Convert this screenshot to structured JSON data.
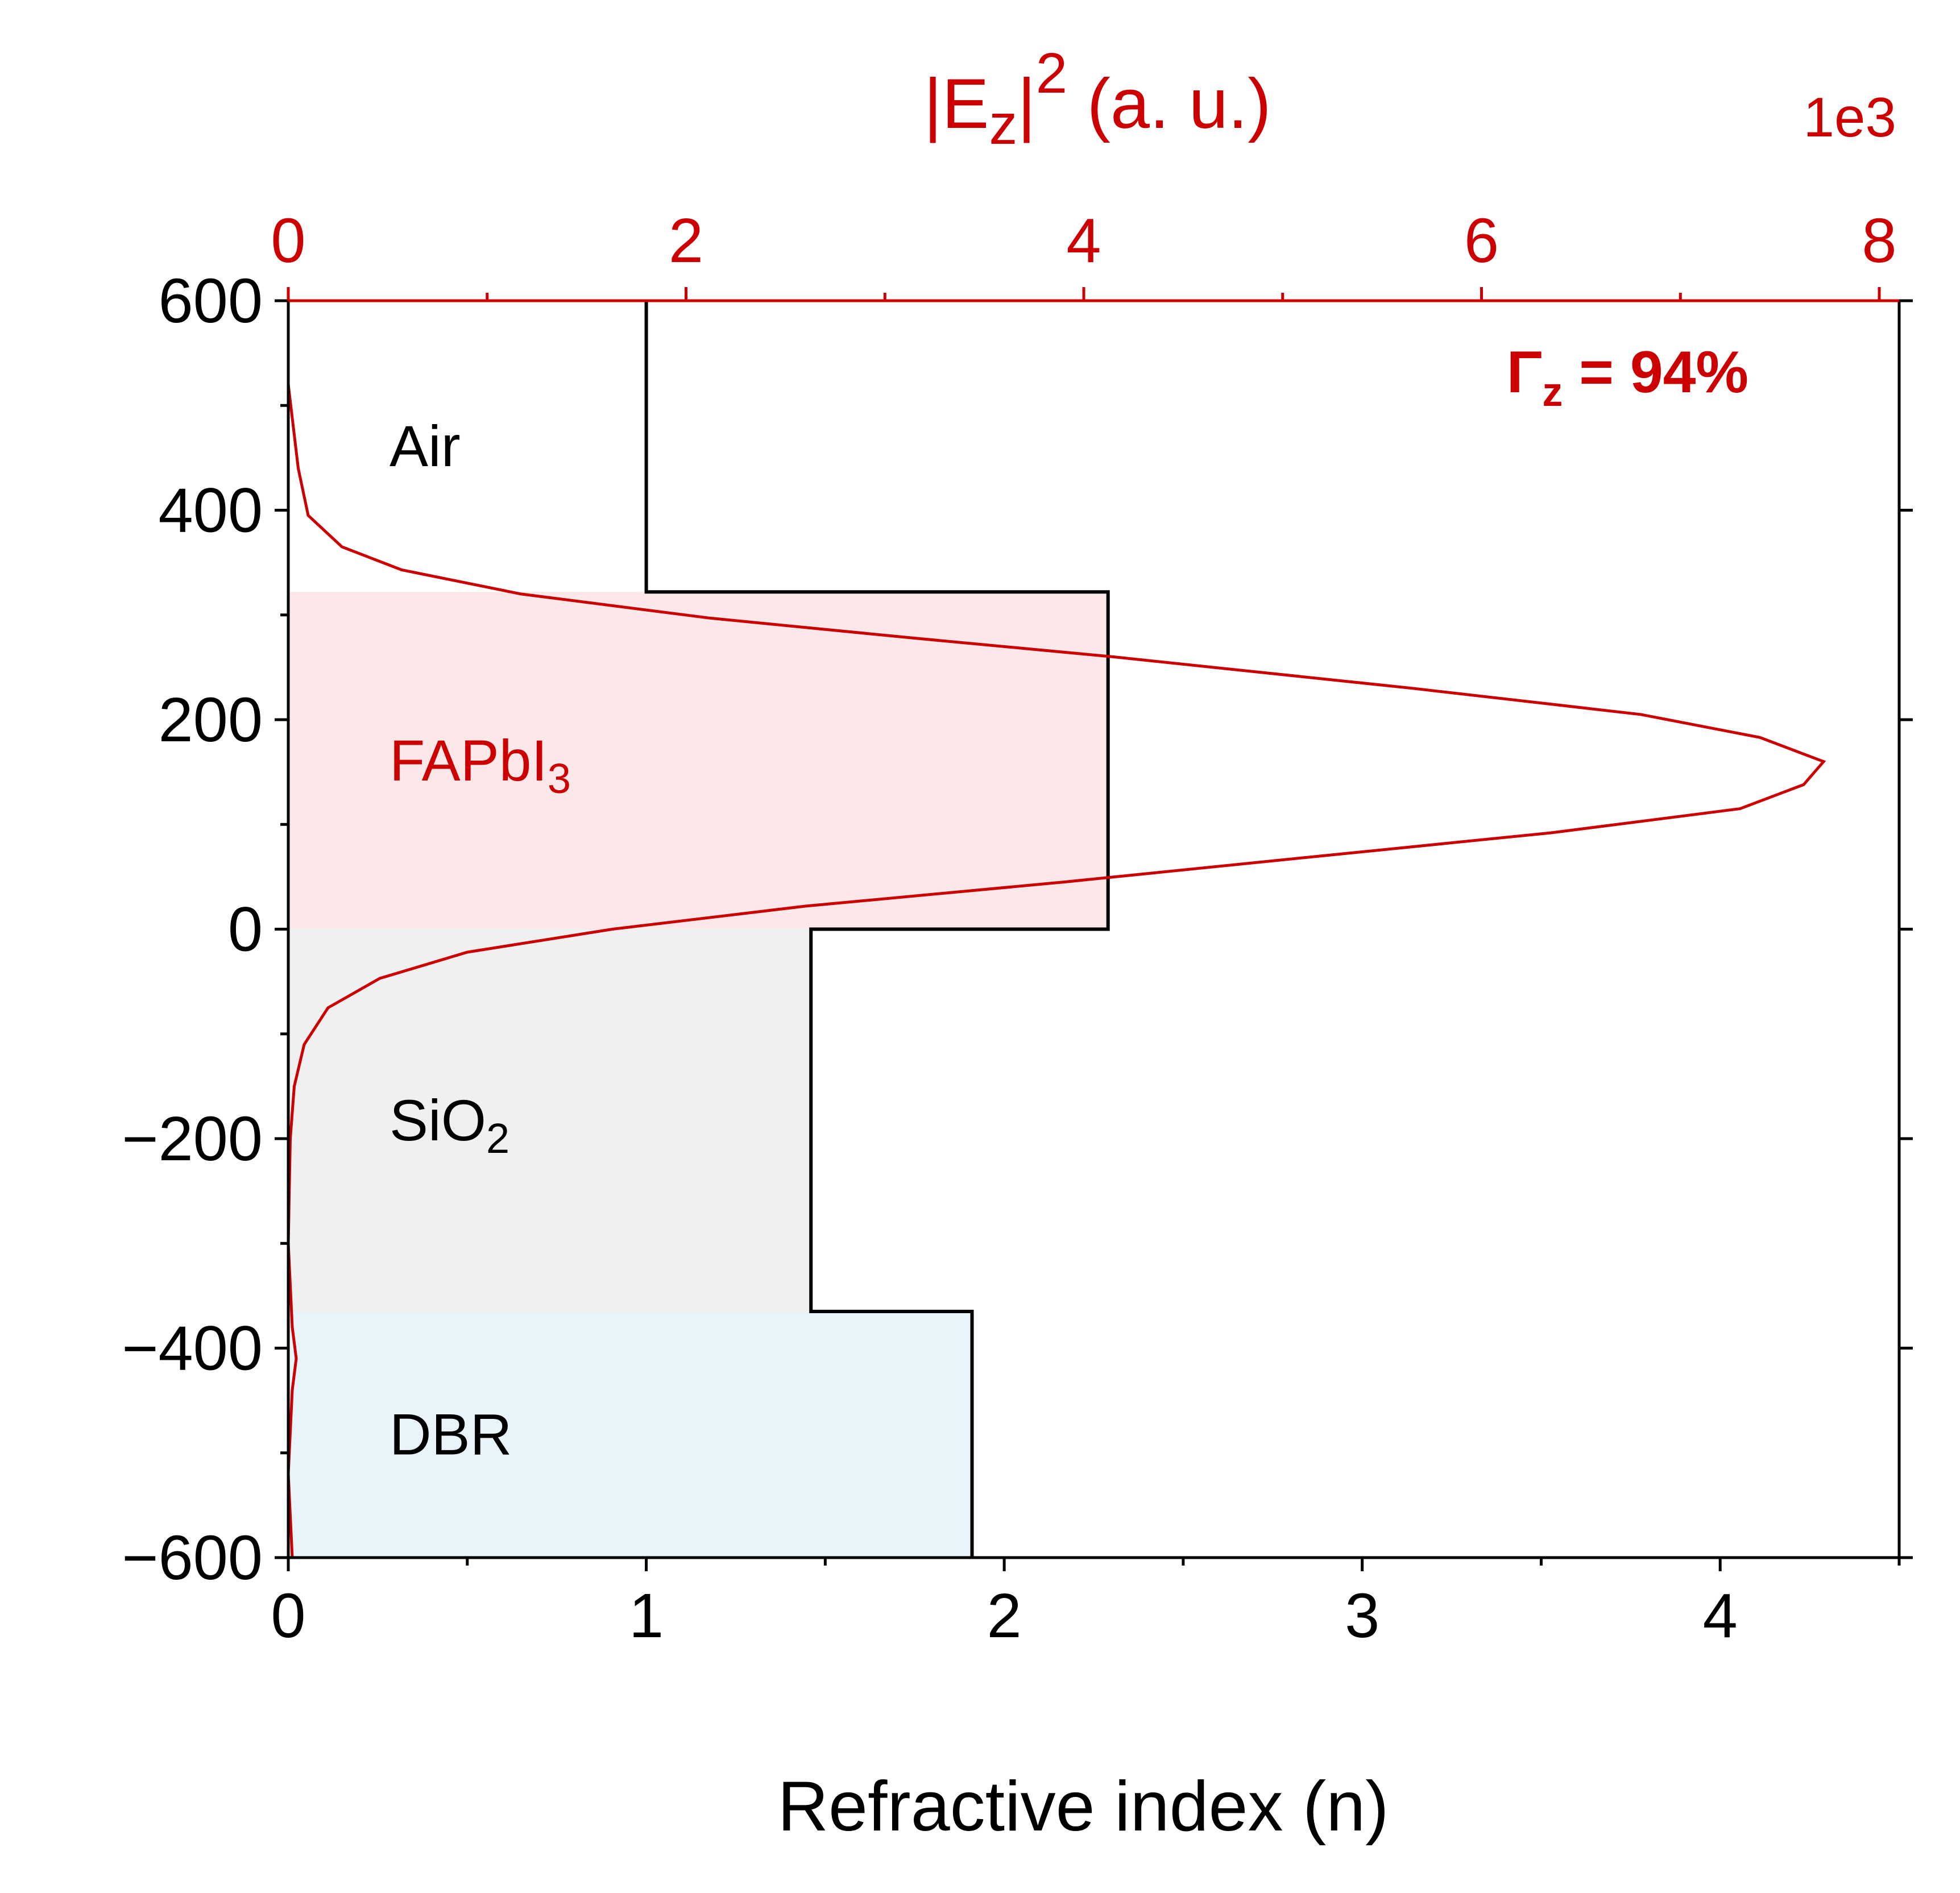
{
  "chart_data": {
    "type": "line",
    "xlabel": "Refractive index (n)",
    "x2label": "|E",
    "x2label_sub": "z",
    "x2label_sup": "2",
    "x2label_tail": " (a. u.)",
    "x2_multiplier": "1e3",
    "xlim": [
      0,
      4.5
    ],
    "x2lim": [
      0,
      8.1
    ],
    "ylim": [
      -600,
      600
    ],
    "x_ticks": [
      "0",
      "1",
      "2",
      "3",
      "4"
    ],
    "x2_ticks": [
      "0",
      "2",
      "4",
      "6",
      "8"
    ],
    "y_ticks": [
      "600",
      "400",
      "200",
      "0",
      "−200",
      "−400",
      "−600"
    ],
    "annotation": {
      "prefix": "Γ",
      "sub": "z",
      "suffix": " = 94%"
    },
    "colors": {
      "field": "#cc0000",
      "index": "#000000",
      "axis_top": "#cc0000"
    },
    "regions": [
      {
        "label": "Air",
        "sub": "",
        "y0": 322,
        "y1": 600,
        "color": "#ffffff",
        "label_color": "#000000"
      },
      {
        "label": "FAPbI",
        "sub": "3",
        "y0": 0,
        "y1": 322,
        "color": "#fce8e8",
        "label_color": "#cc0000"
      },
      {
        "label": "SiO",
        "sub": "2",
        "y0": -365,
        "y1": 0,
        "color": "#f0f0f0",
        "label_color": "#000000"
      },
      {
        "label": "DBR",
        "sub": "",
        "y0": -600,
        "y1": -365,
        "color": "#e8f3fa",
        "label_color": "#000000"
      }
    ],
    "series": [
      {
        "axis": "bottom",
        "points": [
          [
            1.0,
            600
          ],
          [
            1.0,
            322
          ],
          [
            2.29,
            322
          ],
          [
            2.29,
            0
          ],
          [
            1.46,
            0
          ],
          [
            1.46,
            -365
          ],
          [
            1.91,
            -365
          ],
          [
            1.91,
            -600
          ]
        ]
      },
      {
        "axis": "top",
        "points": [
          [
            0.0,
            520
          ],
          [
            0.05,
            440
          ],
          [
            0.1,
            395
          ],
          [
            0.27,
            365
          ],
          [
            0.57,
            343
          ],
          [
            1.17,
            320
          ],
          [
            2.12,
            297
          ],
          [
            3.14,
            278
          ],
          [
            4.15,
            260
          ],
          [
            5.65,
            230
          ],
          [
            6.8,
            205
          ],
          [
            7.4,
            183
          ],
          [
            7.72,
            160
          ],
          [
            7.62,
            138
          ],
          [
            7.3,
            115
          ],
          [
            6.35,
            92
          ],
          [
            5.2,
            70
          ],
          [
            3.9,
            45
          ],
          [
            2.6,
            22
          ],
          [
            1.63,
            0
          ],
          [
            0.9,
            -22
          ],
          [
            0.46,
            -47
          ],
          [
            0.2,
            -75
          ],
          [
            0.08,
            -110
          ],
          [
            0.03,
            -150
          ],
          [
            0.01,
            -200
          ],
          [
            0.0,
            -300
          ],
          [
            0.02,
            -380
          ],
          [
            0.04,
            -410
          ],
          [
            0.02,
            -440
          ],
          [
            0.0,
            -520
          ],
          [
            0.02,
            -600
          ]
        ]
      }
    ]
  }
}
